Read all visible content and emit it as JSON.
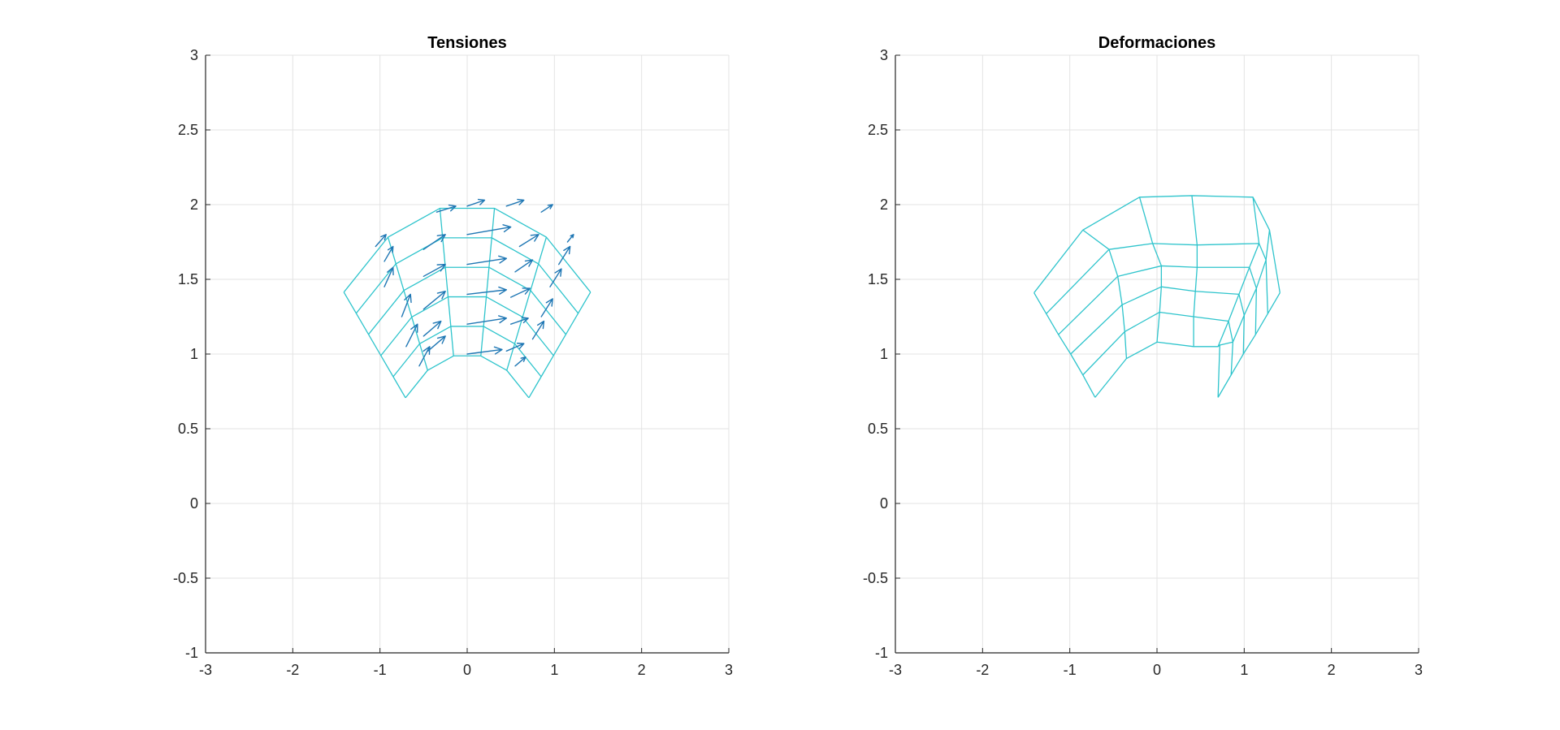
{
  "colors": {
    "mesh": "#2ec4cc",
    "arrow": "#1f77b4",
    "grid": "#e3e3e3",
    "axis": "#262626",
    "background": "#ffffff"
  },
  "chart_data": [
    {
      "type": "quiver",
      "title": "Tensiones",
      "xlabel": "",
      "ylabel": "",
      "xlim": [
        -3,
        3
      ],
      "ylim": [
        -1,
        3
      ],
      "xticks": [
        "-3",
        "-2",
        "-1",
        "0",
        "1",
        "2",
        "3"
      ],
      "yticks": [
        "-1",
        "-0.5",
        "0",
        "0.5",
        "1",
        "1.5",
        "2",
        "2.5",
        "3"
      ],
      "grid": true,
      "mesh": {
        "radii": [
          1.0,
          1.2,
          1.4,
          1.6,
          1.8,
          2.0
        ],
        "angles_deg": [
          45,
          63,
          81,
          99,
          117,
          135
        ]
      },
      "arrows": [
        {
          "x": 0.0,
          "y": 1.0,
          "u": 0.4,
          "v": 0.03
        },
        {
          "x": 0.45,
          "y": 1.02,
          "u": 0.2,
          "v": 0.05
        },
        {
          "x": -0.45,
          "y": 1.02,
          "u": 0.2,
          "v": 0.1
        },
        {
          "x": 0.55,
          "y": 0.92,
          "u": 0.12,
          "v": 0.06
        },
        {
          "x": -0.55,
          "y": 0.92,
          "u": 0.12,
          "v": 0.13
        },
        {
          "x": 0.0,
          "y": 1.2,
          "u": 0.45,
          "v": 0.04
        },
        {
          "x": 0.5,
          "y": 1.2,
          "u": 0.2,
          "v": 0.04
        },
        {
          "x": -0.5,
          "y": 1.12,
          "u": 0.2,
          "v": 0.1
        },
        {
          "x": 0.75,
          "y": 1.1,
          "u": 0.13,
          "v": 0.12
        },
        {
          "x": -0.7,
          "y": 1.05,
          "u": 0.13,
          "v": 0.15
        },
        {
          "x": 0.0,
          "y": 1.4,
          "u": 0.45,
          "v": 0.03
        },
        {
          "x": 0.5,
          "y": 1.38,
          "u": 0.22,
          "v": 0.06
        },
        {
          "x": -0.5,
          "y": 1.3,
          "u": 0.25,
          "v": 0.12
        },
        {
          "x": 0.85,
          "y": 1.25,
          "u": 0.13,
          "v": 0.12
        },
        {
          "x": -0.75,
          "y": 1.25,
          "u": 0.1,
          "v": 0.15
        },
        {
          "x": 0.0,
          "y": 1.6,
          "u": 0.45,
          "v": 0.04
        },
        {
          "x": 0.55,
          "y": 1.55,
          "u": 0.2,
          "v": 0.08
        },
        {
          "x": -0.5,
          "y": 1.52,
          "u": 0.25,
          "v": 0.08
        },
        {
          "x": 0.95,
          "y": 1.45,
          "u": 0.13,
          "v": 0.12
        },
        {
          "x": -0.95,
          "y": 1.45,
          "u": 0.1,
          "v": 0.13
        },
        {
          "x": 0.0,
          "y": 1.8,
          "u": 0.5,
          "v": 0.05
        },
        {
          "x": 0.6,
          "y": 1.72,
          "u": 0.22,
          "v": 0.08
        },
        {
          "x": -0.5,
          "y": 1.7,
          "u": 0.25,
          "v": 0.1
        },
        {
          "x": 1.05,
          "y": 1.6,
          "u": 0.13,
          "v": 0.12
        },
        {
          "x": -0.95,
          "y": 1.62,
          "u": 0.1,
          "v": 0.1
        },
        {
          "x": 0.0,
          "y": 1.99,
          "u": 0.2,
          "v": 0.04
        },
        {
          "x": 0.45,
          "y": 1.99,
          "u": 0.2,
          "v": 0.04
        },
        {
          "x": -0.35,
          "y": 1.95,
          "u": 0.22,
          "v": 0.04
        },
        {
          "x": 0.85,
          "y": 1.95,
          "u": 0.13,
          "v": 0.05
        },
        {
          "x": -1.05,
          "y": 1.72,
          "u": 0.12,
          "v": 0.08
        },
        {
          "x": 1.15,
          "y": 1.75,
          "u": 0.07,
          "v": 0.05
        }
      ]
    },
    {
      "type": "line",
      "title": "Deformaciones",
      "xlabel": "",
      "ylabel": "",
      "xlim": [
        -3,
        3
      ],
      "ylim": [
        -1,
        3
      ],
      "xticks": [
        "-3",
        "-2",
        "-1",
        "0",
        "1",
        "2",
        "3"
      ],
      "yticks": [
        "-1",
        "-0.5",
        "0",
        "0.5",
        "1",
        "1.5",
        "2",
        "2.5",
        "3"
      ],
      "grid": true,
      "mesh_nodes": [
        [
          [
            0.7,
            0.71
          ],
          [
            0.72,
            1.06
          ],
          [
            0.7,
            1.05
          ],
          [
            0.42,
            1.05
          ],
          [
            0.0,
            1.08
          ],
          [
            -0.35,
            0.97
          ],
          [
            -0.71,
            0.71
          ]
        ],
        [
          [
            0.85,
            0.86
          ],
          [
            0.87,
            1.08
          ],
          [
            0.82,
            1.22
          ],
          [
            0.42,
            1.25
          ],
          [
            0.03,
            1.28
          ],
          [
            -0.37,
            1.15
          ],
          [
            -0.85,
            0.86
          ]
        ],
        [
          [
            0.99,
            1.0
          ],
          [
            1.0,
            1.26
          ],
          [
            0.94,
            1.4
          ],
          [
            0.44,
            1.42
          ],
          [
            0.05,
            1.45
          ],
          [
            -0.4,
            1.33
          ],
          [
            -0.99,
            1.0
          ]
        ],
        [
          [
            1.13,
            1.13
          ],
          [
            1.14,
            1.44
          ],
          [
            1.06,
            1.58
          ],
          [
            0.46,
            1.58
          ],
          [
            0.05,
            1.59
          ],
          [
            -0.45,
            1.52
          ],
          [
            -1.13,
            1.13
          ]
        ],
        [
          [
            1.27,
            1.27
          ],
          [
            1.25,
            1.63
          ],
          [
            1.17,
            1.74
          ],
          [
            0.46,
            1.73
          ],
          [
            -0.05,
            1.74
          ],
          [
            -0.55,
            1.7
          ],
          [
            -1.27,
            1.27
          ]
        ],
        [
          [
            1.41,
            1.41
          ],
          [
            1.29,
            1.83
          ],
          [
            1.1,
            2.05
          ],
          [
            0.4,
            2.06
          ],
          [
            -0.2,
            2.05
          ],
          [
            -0.85,
            1.83
          ],
          [
            -1.41,
            1.41
          ]
        ]
      ]
    }
  ]
}
